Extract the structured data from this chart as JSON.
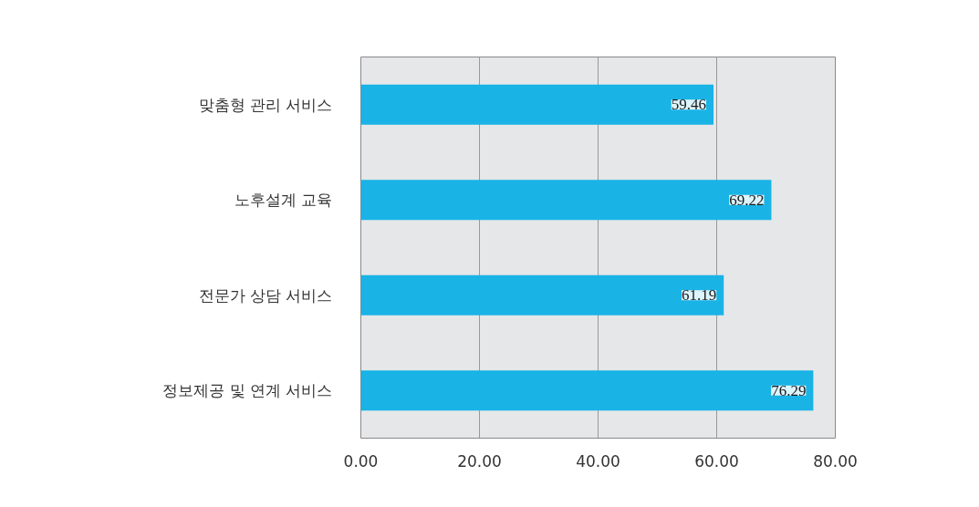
{
  "chart_data": {
    "type": "bar",
    "orientation": "horizontal",
    "categories": [
      "맞춤형 관리 서비스",
      "노후설계 교육",
      "전문가 상담 서비스",
      "정보제공 및 연계 서비스"
    ],
    "values": [
      59.46,
      69.22,
      61.19,
      76.29
    ],
    "color": "#19b3e6",
    "xlim": [
      0,
      80
    ],
    "xticks": [
      {
        "value": 0,
        "label": "0.00"
      },
      {
        "value": 20,
        "label": "20.00"
      },
      {
        "value": 40,
        "label": "40.00"
      },
      {
        "value": 60,
        "label": "60.00"
      },
      {
        "value": 80,
        "label": "80.00"
      }
    ],
    "grid": "x",
    "data_labels": true
  }
}
